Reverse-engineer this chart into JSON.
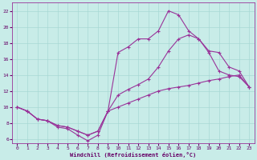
{
  "title": "",
  "xlabel": "Windchill (Refroidissement éolien,°C)",
  "ylabel": "",
  "background_color": "#c8ece8",
  "grid_color": "#a8d8d4",
  "line_color": "#993399",
  "xlim": [
    -0.5,
    23.5
  ],
  "ylim": [
    5.5,
    23.0
  ],
  "xticks": [
    0,
    1,
    2,
    3,
    4,
    5,
    6,
    7,
    8,
    9,
    10,
    11,
    12,
    13,
    14,
    15,
    16,
    17,
    18,
    19,
    20,
    21,
    22,
    23
  ],
  "yticks": [
    6,
    8,
    10,
    12,
    14,
    16,
    18,
    20,
    22
  ],
  "line1_x": [
    0,
    1,
    2,
    3,
    4,
    5,
    6,
    7,
    8,
    9,
    10,
    11,
    12,
    13,
    14,
    15,
    16,
    17,
    18,
    19,
    20,
    21,
    22,
    23
  ],
  "line1_y": [
    10.0,
    9.5,
    8.5,
    8.3,
    7.5,
    7.3,
    6.5,
    5.8,
    6.5,
    9.5,
    16.8,
    17.5,
    18.5,
    18.5,
    19.5,
    22.0,
    21.5,
    19.5,
    18.5,
    16.8,
    14.5,
    14.0,
    13.8,
    12.5
  ],
  "line2_x": [
    0,
    1,
    2,
    3,
    4,
    5,
    6,
    7,
    8,
    9,
    10,
    11,
    12,
    13,
    14,
    15,
    16,
    17,
    18,
    19,
    20,
    21,
    22,
    23
  ],
  "line2_y": [
    10.0,
    9.5,
    8.5,
    8.3,
    7.7,
    7.5,
    7.0,
    6.5,
    7.0,
    9.5,
    11.5,
    12.2,
    12.8,
    13.5,
    15.0,
    17.0,
    18.5,
    19.0,
    18.5,
    17.0,
    16.8,
    15.0,
    14.5,
    12.5
  ],
  "line3_x": [
    0,
    1,
    2,
    3,
    4,
    5,
    6,
    7,
    8,
    9,
    10,
    11,
    12,
    13,
    14,
    15,
    16,
    17,
    18,
    19,
    20,
    21,
    22,
    23
  ],
  "line3_y": [
    10.0,
    9.5,
    8.5,
    8.3,
    7.7,
    7.5,
    7.0,
    6.5,
    7.0,
    9.5,
    10.0,
    10.5,
    11.0,
    11.5,
    12.0,
    12.3,
    12.5,
    12.7,
    13.0,
    13.3,
    13.5,
    13.8,
    14.0,
    12.5
  ]
}
